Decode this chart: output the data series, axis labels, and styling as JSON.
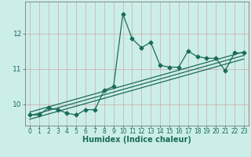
{
  "title": "",
  "xlabel": "Humidex (Indice chaleur)",
  "bg_color": "#cceee8",
  "line_color": "#1a6b5a",
  "grid_color": "#cc9999",
  "x_data": [
    0,
    1,
    2,
    3,
    4,
    5,
    6,
    7,
    8,
    9,
    10,
    11,
    12,
    13,
    14,
    15,
    16,
    17,
    18,
    19,
    20,
    21,
    22,
    23
  ],
  "y_data": [
    9.7,
    9.7,
    9.9,
    9.85,
    9.75,
    9.7,
    9.85,
    9.85,
    10.4,
    10.5,
    12.55,
    11.85,
    11.6,
    11.75,
    11.1,
    11.05,
    11.05,
    11.5,
    11.35,
    11.3,
    11.3,
    10.95,
    11.45,
    11.45
  ],
  "reg_lines": [
    {
      "x0": 0,
      "y0": 9.58,
      "x1": 23,
      "y1": 11.28
    },
    {
      "x0": 0,
      "y0": 9.68,
      "x1": 23,
      "y1": 11.38
    },
    {
      "x0": 0,
      "y0": 9.78,
      "x1": 23,
      "y1": 11.48
    }
  ],
  "xlim": [
    -0.5,
    23.5
  ],
  "ylim": [
    9.4,
    12.9
  ],
  "yticks": [
    10,
    11,
    12
  ],
  "xticks": [
    0,
    1,
    2,
    3,
    4,
    5,
    6,
    7,
    8,
    9,
    10,
    11,
    12,
    13,
    14,
    15,
    16,
    17,
    18,
    19,
    20,
    21,
    22,
    23
  ],
  "marker": "D",
  "marker_size": 2.5,
  "line_width": 0.9,
  "tick_fontsize": 5.5,
  "xlabel_fontsize": 7
}
